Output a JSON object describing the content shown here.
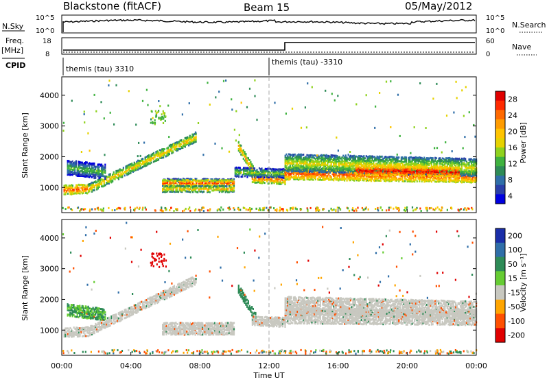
{
  "header": {
    "title_left": "Blackstone (fitACF)",
    "title_center": "Beam 15",
    "title_right": "05/May/2012"
  },
  "top_panels": {
    "nsky_label": "N.Sky",
    "nsearch_label": "N.Search",
    "nsky_ticks": [
      "10^5",
      "10^0"
    ],
    "freq_label_1": "Freq.",
    "freq_label_2": "[MHz]",
    "freq_ticks": [
      "18",
      "8"
    ],
    "nave_label": "Nave",
    "nave_ticks": [
      "60",
      "0"
    ],
    "cpid_label": "CPID",
    "cpid_1": "themis (tau) 3310",
    "cpid_2": "themis (tau) -3310"
  },
  "axes": {
    "x_ticks": [
      "00:00",
      "04:00",
      "08:00",
      "12:00",
      "16:00",
      "20:00",
      "00:00"
    ],
    "x_label": "Time UT",
    "y_label": "Slant Range [km]",
    "y_ticks": [
      "1000",
      "2000",
      "3000",
      "4000"
    ]
  },
  "colorbars": {
    "power_label": "Power [dB]",
    "power_ticks": [
      "28",
      "24",
      "20",
      "16",
      "12",
      "8",
      "4"
    ],
    "power_colors": [
      "#e00000",
      "#ff2a00",
      "#ff6a00",
      "#ff9c00",
      "#ffc400",
      "#e6d200",
      "#8fd21e",
      "#3fb23f",
      "#2e8b57",
      "#2f6ea8",
      "#2a3fa8",
      "#0000e0"
    ],
    "velocity_label": "Velocity [m s⁻¹]",
    "velocity_ticks": [
      "200",
      "100",
      "50",
      "15",
      "-15",
      "-50",
      "-100",
      "-200"
    ],
    "velocity_colors": [
      "#1a2ea8",
      "#2f6ea8",
      "#2e8b57",
      "#66cc33",
      "#c8c8c0",
      "#ffa500",
      "#ff5000",
      "#e00000"
    ]
  },
  "chart_data": [
    {
      "type": "heatmap",
      "name": "Power",
      "xlabel": "Time UT",
      "ylabel": "Slant Range [km]",
      "xlim": [
        0,
        24
      ],
      "ylim": [
        180,
        4600
      ],
      "bands": [
        {
          "start": 0.1,
          "end": 1.5,
          "r0": 920,
          "r1": 950,
          "w": 140,
          "p": 22
        },
        {
          "start": 1.5,
          "end": 7.8,
          "r0": 950,
          "r1": 2650,
          "w": 120,
          "p": 16
        },
        {
          "start": 0.3,
          "end": 2.5,
          "r0": 1650,
          "r1": 1500,
          "w": 220,
          "p": 8
        },
        {
          "start": 5.8,
          "end": 10.0,
          "r0": 1220,
          "r1": 1220,
          "w": 60,
          "p": 12
        },
        {
          "start": 5.8,
          "end": 10.0,
          "r0": 1140,
          "r1": 1140,
          "w": 80,
          "p": 22
        },
        {
          "start": 5.8,
          "end": 10.0,
          "r0": 950,
          "r1": 950,
          "w": 70,
          "p": 16
        },
        {
          "start": 10.2,
          "end": 11.2,
          "r0": 2350,
          "r1": 1400,
          "w": 150,
          "p": 18
        },
        {
          "start": 11.0,
          "end": 12.9,
          "r0": 1300,
          "r1": 1250,
          "w": 140,
          "p": 20
        },
        {
          "start": 10.0,
          "end": 12.9,
          "r0": 1500,
          "r1": 1450,
          "w": 120,
          "p": 10
        },
        {
          "start": 12.9,
          "end": 24.0,
          "r0": 1450,
          "r1": 1350,
          "w": 200,
          "p": 22
        },
        {
          "start": 12.9,
          "end": 24.0,
          "r0": 1800,
          "r1": 1650,
          "w": 260,
          "p": 13
        },
        {
          "start": 17.0,
          "end": 23.0,
          "r0": 1550,
          "r1": 1500,
          "w": 120,
          "p": 26
        }
      ]
    },
    {
      "type": "heatmap",
      "name": "Velocity",
      "xlabel": "Time UT",
      "ylabel": "Slant Range [km]",
      "xlim": [
        0,
        24
      ],
      "ylim": [
        180,
        4600
      ],
      "bands": [
        {
          "start": 0.1,
          "end": 1.5,
          "r0": 920,
          "r1": 950,
          "w": 140,
          "v": 0
        },
        {
          "start": 1.5,
          "end": 7.8,
          "r0": 950,
          "r1": 2650,
          "w": 120,
          "v": 0
        },
        {
          "start": 0.3,
          "end": 2.5,
          "r0": 1650,
          "r1": 1500,
          "w": 200,
          "v": 30
        },
        {
          "start": 5.8,
          "end": 10.0,
          "r0": 1140,
          "r1": 1140,
          "w": 100,
          "v": 0
        },
        {
          "start": 5.8,
          "end": 10.0,
          "r0": 950,
          "r1": 950,
          "w": 70,
          "v": 0
        },
        {
          "start": 10.2,
          "end": 11.2,
          "r0": 2350,
          "r1": 1400,
          "w": 150,
          "v": 40
        },
        {
          "start": 11.0,
          "end": 12.9,
          "r0": 1300,
          "r1": 1250,
          "w": 140,
          "v": 0
        },
        {
          "start": 12.9,
          "end": 24.0,
          "r0": 1450,
          "r1": 1400,
          "w": 220,
          "v": 0
        },
        {
          "start": 12.9,
          "end": 24.0,
          "r0": 1800,
          "r1": 1650,
          "w": 260,
          "v": 0
        }
      ]
    }
  ]
}
